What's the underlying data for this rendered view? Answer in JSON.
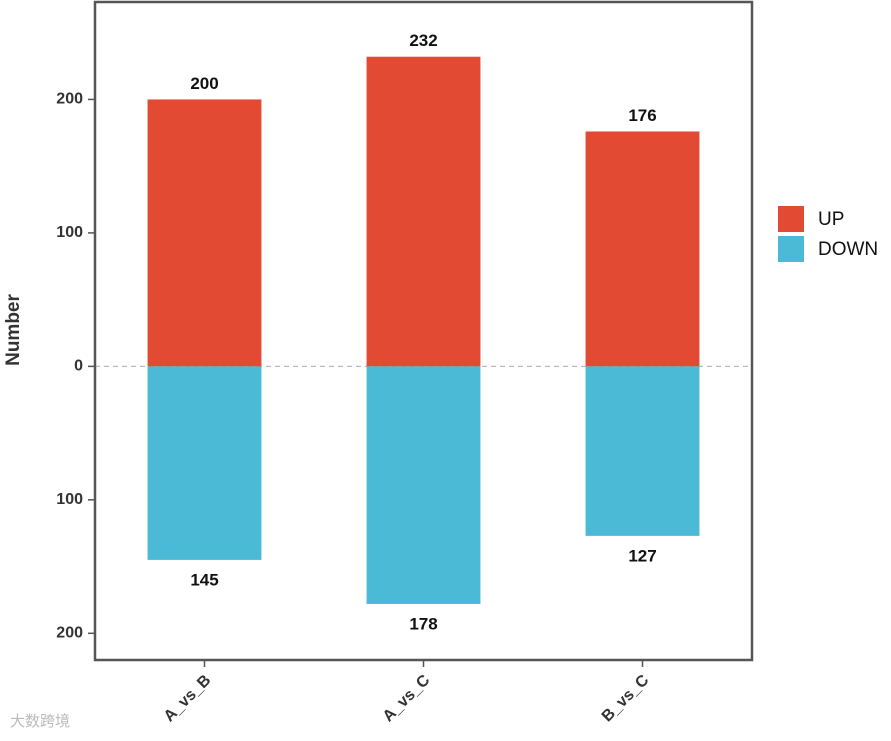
{
  "chart_data": {
    "type": "bar",
    "y_label": "Number",
    "categories": [
      "A_vs_B",
      "A_vs_C",
      "B_vs_C"
    ],
    "series": [
      {
        "name": "UP",
        "color": "#e34a33",
        "values": [
          200,
          232,
          176
        ]
      },
      {
        "name": "DOWN",
        "color": "#4bbad6",
        "values": [
          -145,
          -178,
          -127
        ],
        "value_labels": [
          "145",
          "178",
          "127"
        ]
      }
    ],
    "ylim": [
      -220,
      273
    ],
    "yticks": [
      {
        "value": -200,
        "label": "200"
      },
      {
        "value": -100,
        "label": "100"
      },
      0,
      100,
      200
    ],
    "grid": false,
    "zero_line": true,
    "legend": "right",
    "watermark": "大数跨境"
  }
}
